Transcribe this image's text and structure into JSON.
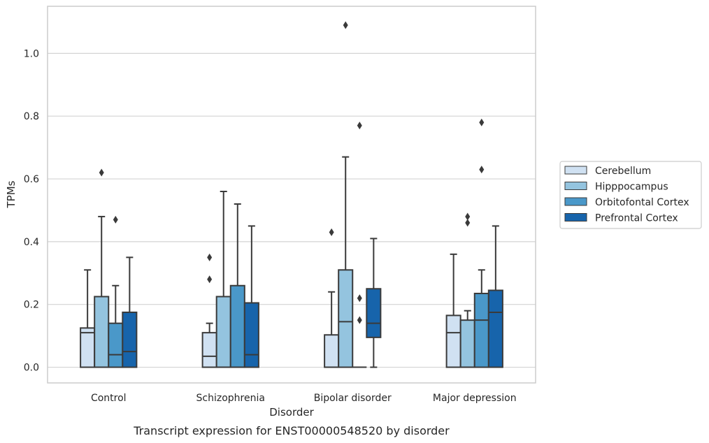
{
  "chart_data": {
    "type": "box",
    "caption": "Transcript expression for ENST00000548520 by disorder",
    "xlabel": "Disorder",
    "ylabel": "TPMs",
    "ylim": [
      -0.05,
      1.15
    ],
    "yticks": [
      0.0,
      0.2,
      0.4,
      0.6,
      0.8,
      1.0
    ],
    "ytick_labels": [
      "0.0",
      "0.2",
      "0.4",
      "0.6",
      "0.8",
      "1.0"
    ],
    "grid": "horizontal",
    "legend_position": "right",
    "categories": [
      "Control",
      "Schizophrenia",
      "Bipolar disorder",
      "Major depression"
    ],
    "series": [
      {
        "name": "Cerebellum",
        "color": "#d0e1f2",
        "boxes": [
          {
            "whislo": 0.0,
            "q1": 0.0,
            "med": 0.11,
            "q3": 0.125,
            "whishi": 0.31,
            "fliers": []
          },
          {
            "whislo": 0.0,
            "q1": 0.0,
            "med": 0.035,
            "q3": 0.11,
            "whishi": 0.14,
            "fliers": [
              0.28,
              0.35
            ]
          },
          {
            "whislo": 0.0,
            "q1": 0.0,
            "med": 0.0,
            "q3": 0.103,
            "whishi": 0.24,
            "fliers": [
              0.43
            ]
          },
          {
            "whislo": 0.0,
            "q1": 0.0,
            "med": 0.11,
            "q3": 0.165,
            "whishi": 0.36,
            "fliers": []
          }
        ]
      },
      {
        "name": "Hipppocampus",
        "color": "#94c4df",
        "boxes": [
          {
            "whislo": 0.0,
            "q1": 0.0,
            "med": 0.0,
            "q3": 0.225,
            "whishi": 0.48,
            "fliers": [
              0.62
            ]
          },
          {
            "whislo": 0.0,
            "q1": 0.0,
            "med": 0.0,
            "q3": 0.225,
            "whishi": 0.56,
            "fliers": []
          },
          {
            "whislo": 0.0,
            "q1": 0.0,
            "med": 0.145,
            "q3": 0.31,
            "whishi": 0.67,
            "fliers": [
              1.09
            ]
          },
          {
            "whislo": 0.0,
            "q1": 0.0,
            "med": 0.0,
            "q3": 0.15,
            "whishi": 0.18,
            "fliers": [
              0.46,
              0.48
            ]
          }
        ]
      },
      {
        "name": "Orbitofontal Cortex",
        "color": "#4a98c9",
        "boxes": [
          {
            "whislo": 0.0,
            "q1": 0.0,
            "med": 0.04,
            "q3": 0.14,
            "whishi": 0.26,
            "fliers": [
              0.47
            ]
          },
          {
            "whislo": 0.0,
            "q1": 0.0,
            "med": 0.0,
            "q3": 0.26,
            "whishi": 0.52,
            "fliers": []
          },
          {
            "whislo": 0.0,
            "q1": 0.0,
            "med": 0.0,
            "q3": 0.0,
            "whishi": 0.0,
            "fliers": [
              0.15,
              0.22,
              0.77
            ]
          },
          {
            "whislo": 0.0,
            "q1": 0.0,
            "med": 0.15,
            "q3": 0.235,
            "whishi": 0.31,
            "fliers": [
              0.63,
              0.78
            ]
          }
        ]
      },
      {
        "name": "Prefrontal Cortex",
        "color": "#1764ab",
        "boxes": [
          {
            "whislo": 0.0,
            "q1": 0.0,
            "med": 0.05,
            "q3": 0.175,
            "whishi": 0.35,
            "fliers": []
          },
          {
            "whislo": 0.0,
            "q1": 0.0,
            "med": 0.04,
            "q3": 0.205,
            "whishi": 0.45,
            "fliers": []
          },
          {
            "whislo": 0.0,
            "q1": 0.095,
            "med": 0.14,
            "q3": 0.25,
            "whishi": 0.41,
            "fliers": []
          },
          {
            "whislo": 0.0,
            "q1": 0.0,
            "med": 0.175,
            "q3": 0.245,
            "whishi": 0.45,
            "fliers": []
          }
        ]
      }
    ]
  }
}
